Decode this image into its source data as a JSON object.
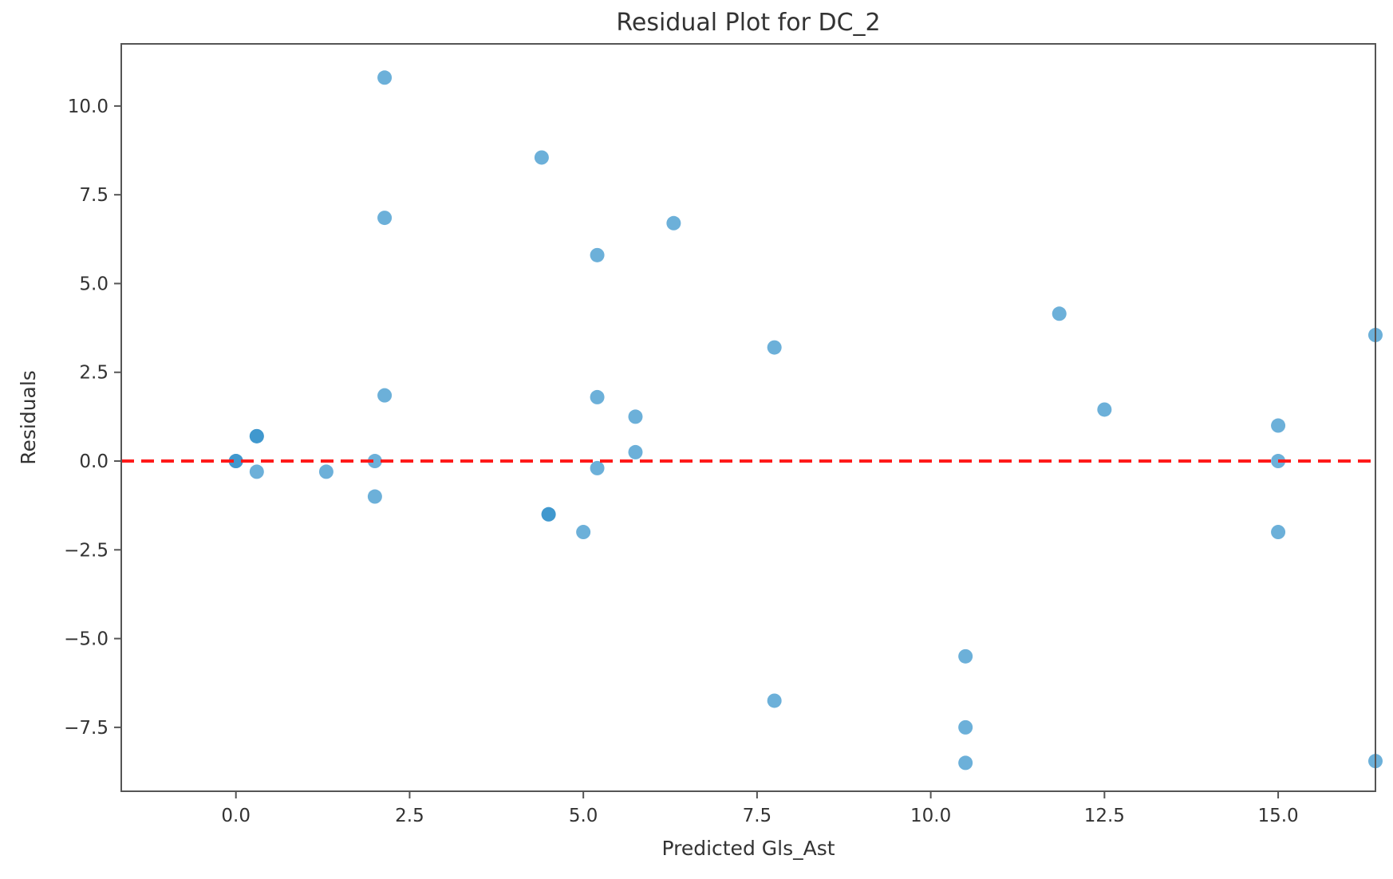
{
  "chart_data": {
    "type": "scatter",
    "title": "Residual Plot for DC_2",
    "xlabel": "Predicted Gls_Ast",
    "ylabel": "Residuals",
    "xlim": [
      -1.65,
      16.4
    ],
    "ylim": [
      -9.3,
      11.75
    ],
    "xticks": [
      0.0,
      2.5,
      5.0,
      7.5,
      10.0,
      12.5,
      15.0
    ],
    "xtick_labels": [
      "0.0",
      "2.5",
      "5.0",
      "7.5",
      "10.0",
      "12.5",
      "15.0"
    ],
    "yticks": [
      -7.5,
      -5.0,
      -2.5,
      0.0,
      2.5,
      5.0,
      7.5,
      10.0
    ],
    "ytick_labels": [
      "−7.5",
      "−5.0",
      "−2.5",
      "0.0",
      "2.5",
      "5.0",
      "7.5",
      "10.0"
    ],
    "grid": false,
    "point_color": "#2e8fc9",
    "point_opacity": 0.7,
    "reference_line": {
      "y": 0,
      "color": "#ff1a1a",
      "style": "dashed"
    },
    "points": [
      {
        "x": 0.0,
        "y": 0.0
      },
      {
        "x": 0.0,
        "y": 0.0
      },
      {
        "x": 0.3,
        "y": 0.7
      },
      {
        "x": 0.3,
        "y": 0.7
      },
      {
        "x": 0.3,
        "y": -0.3
      },
      {
        "x": 1.3,
        "y": -0.3
      },
      {
        "x": 2.0,
        "y": 0.0
      },
      {
        "x": 2.0,
        "y": -1.0
      },
      {
        "x": 2.14,
        "y": 10.8
      },
      {
        "x": 2.14,
        "y": 6.85
      },
      {
        "x": 2.14,
        "y": 1.85
      },
      {
        "x": 4.4,
        "y": 8.55
      },
      {
        "x": 4.5,
        "y": -1.5
      },
      {
        "x": 4.5,
        "y": -1.5
      },
      {
        "x": 5.0,
        "y": -2.0
      },
      {
        "x": 5.2,
        "y": 5.8
      },
      {
        "x": 5.2,
        "y": 1.8
      },
      {
        "x": 5.2,
        "y": -0.2
      },
      {
        "x": 5.75,
        "y": 1.25
      },
      {
        "x": 5.75,
        "y": 0.25
      },
      {
        "x": 6.3,
        "y": 6.7
      },
      {
        "x": 7.75,
        "y": 3.2
      },
      {
        "x": 7.75,
        "y": -6.75
      },
      {
        "x": 10.5,
        "y": -5.5
      },
      {
        "x": 10.5,
        "y": -7.5
      },
      {
        "x": 10.5,
        "y": -8.5
      },
      {
        "x": 11.85,
        "y": 4.15
      },
      {
        "x": 12.5,
        "y": 1.45
      },
      {
        "x": 15.0,
        "y": 1.0
      },
      {
        "x": 15.0,
        "y": 0.0
      },
      {
        "x": 15.0,
        "y": -2.0
      },
      {
        "x": 16.4,
        "y": 3.55
      },
      {
        "x": 16.4,
        "y": -8.45
      }
    ]
  }
}
